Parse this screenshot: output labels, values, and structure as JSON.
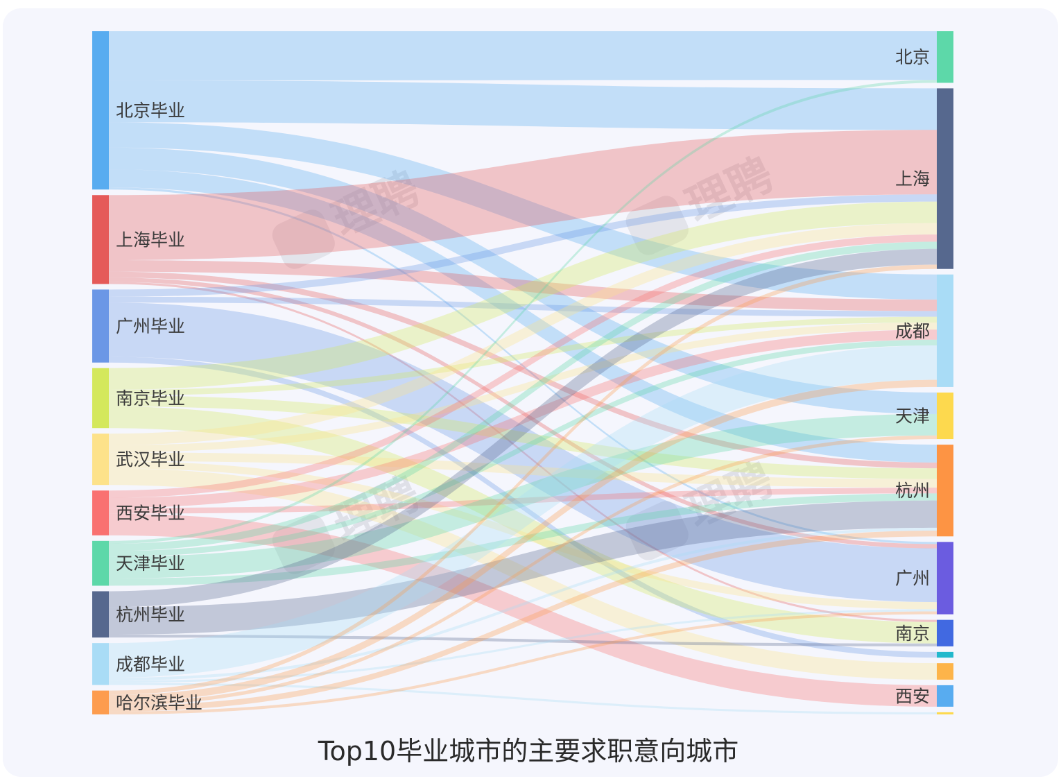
{
  "chart_data": {
    "type": "sankey",
    "title": "Top10毕业城市的主要求职意向城市",
    "watermark": "理聘",
    "sources": [
      {
        "name": "北京毕业",
        "color": "#58acf0"
      },
      {
        "name": "上海毕业",
        "color": "#e55a59"
      },
      {
        "name": "广州毕业",
        "color": "#6b97e6"
      },
      {
        "name": "南京毕业",
        "color": "#d4e85c"
      },
      {
        "name": "武汉毕业",
        "color": "#fde28a"
      },
      {
        "name": "西安毕业",
        "color": "#f97171"
      },
      {
        "name": "天津毕业",
        "color": "#5dd8a9"
      },
      {
        "name": "杭州毕业",
        "color": "#56688e"
      },
      {
        "name": "成都毕业",
        "color": "#a9dcf6"
      },
      {
        "name": "哈尔滨毕业",
        "color": "#fd9c4e"
      }
    ],
    "targets": [
      {
        "name": "北京",
        "color": "#5dd8a9"
      },
      {
        "name": "上海",
        "color": "#56688e"
      },
      {
        "name": "成都",
        "color": "#a9dcf6"
      },
      {
        "name": "天津",
        "color": "#fdd94e"
      },
      {
        "name": "杭州",
        "color": "#fd9444"
      },
      {
        "name": "广州",
        "color": "#6b5ce0"
      },
      {
        "name": "南京",
        "color": "#4169e1"
      },
      {
        "name": "",
        "color": "#22b8cc"
      },
      {
        "name": "",
        "color": "#fdb44a"
      },
      {
        "name": "西安",
        "color": "#58acf0"
      },
      {
        "name": "",
        "color": "#fdd94e"
      }
    ],
    "links": [
      {
        "source": "北京毕业",
        "target": "北京",
        "value": 68
      },
      {
        "source": "北京毕业",
        "target": "上海",
        "value": 58
      },
      {
        "source": "北京毕业",
        "target": "成都",
        "value": 35
      },
      {
        "source": "北京毕业",
        "target": "天津",
        "value": 30
      },
      {
        "source": "北京毕业",
        "target": "杭州",
        "value": 25
      },
      {
        "source": "北京毕业",
        "target": "广州",
        "value": 3
      },
      {
        "source": "上海毕业",
        "target": "上海",
        "value": 90
      },
      {
        "source": "上海毕业",
        "target": "成都",
        "value": 16
      },
      {
        "source": "上海毕业",
        "target": "杭州",
        "value": 8
      },
      {
        "source": "上海毕业",
        "target": "广州",
        "value": 6
      },
      {
        "source": "上海毕业",
        "target": "南京",
        "value": 3
      },
      {
        "source": "广州毕业",
        "target": "上海",
        "value": 10
      },
      {
        "source": "广州毕业",
        "target": "成都",
        "value": 8
      },
      {
        "source": "广州毕业",
        "target": "广州",
        "value": 75
      },
      {
        "source": "广州毕业",
        "target": "",
        "value": 8
      },
      {
        "source": "南京毕业",
        "target": "上海",
        "value": 30
      },
      {
        "source": "南京毕业",
        "target": "成都",
        "value": 8
      },
      {
        "source": "南京毕业",
        "target": "杭州",
        "value": 15
      },
      {
        "source": "南京毕业",
        "target": "南京",
        "value": 30
      },
      {
        "source": "武汉毕业",
        "target": "上海",
        "value": 16
      },
      {
        "source": "武汉毕业",
        "target": "成都",
        "value": 10
      },
      {
        "source": "武汉毕业",
        "target": "杭州",
        "value": 12
      },
      {
        "source": "武汉毕业",
        "target": "广州",
        "value": 10
      },
      {
        "source": "武汉毕业",
        "target": "",
        "value": 23
      },
      {
        "source": "西安毕业",
        "target": "上海",
        "value": 10
      },
      {
        "source": "西安毕业",
        "target": "成都",
        "value": 14
      },
      {
        "source": "西安毕业",
        "target": "杭州",
        "value": 8
      },
      {
        "source": "西安毕业",
        "target": "西安",
        "value": 30
      },
      {
        "source": "天津毕业",
        "target": "北京",
        "value": 4
      },
      {
        "source": "天津毕业",
        "target": "上海",
        "value": 10
      },
      {
        "source": "天津毕业",
        "target": "成都",
        "value": 8
      },
      {
        "source": "天津毕业",
        "target": "天津",
        "value": 30
      },
      {
        "source": "天津毕业",
        "target": "杭州",
        "value": 10
      },
      {
        "source": "杭州毕业",
        "target": "上海",
        "value": 22
      },
      {
        "source": "杭州毕业",
        "target": "杭州",
        "value": 38
      },
      {
        "source": "杭州毕业",
        "target": "南京",
        "value": 4
      },
      {
        "source": "成都毕业",
        "target": "成都",
        "value": 48
      },
      {
        "source": "成都毕业",
        "target": "杭州",
        "value": 4
      },
      {
        "source": "成都毕业",
        "target": "广州",
        "value": 3
      },
      {
        "source": "成都毕业",
        "target": "",
        "value": 3
      },
      {
        "source": "哈尔滨毕业",
        "target": "上海",
        "value": 6
      },
      {
        "source": "哈尔滨毕业",
        "target": "成都",
        "value": 10
      },
      {
        "source": "哈尔滨毕业",
        "target": "天津",
        "value": 5
      },
      {
        "source": "哈尔滨毕业",
        "target": "杭州",
        "value": 8
      },
      {
        "source": "哈尔滨毕业",
        "target": "广州",
        "value": 4
      }
    ]
  }
}
